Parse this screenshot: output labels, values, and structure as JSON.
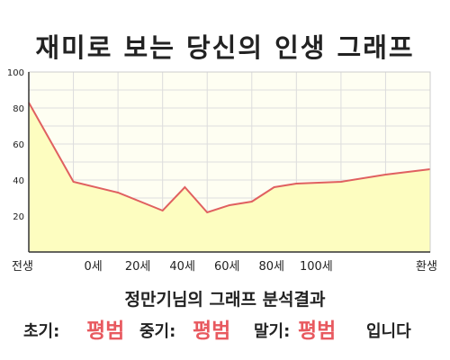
{
  "header": {
    "title": "재미로 보는 당신의 인생 그래프"
  },
  "chart_data": {
    "type": "area",
    "categories": [
      "전생",
      "0세",
      "20세",
      "40세",
      "60세",
      "80세",
      "100세",
      "환생"
    ],
    "x": [
      0,
      1,
      2,
      3,
      3.5,
      4,
      4.5,
      5,
      5.5,
      6,
      7,
      8,
      9
    ],
    "values": [
      83,
      39,
      33,
      23,
      36,
      22,
      26,
      28,
      36,
      38,
      39,
      43,
      46
    ],
    "ylim": [
      0,
      100
    ],
    "yticks": [
      20,
      40,
      60,
      80,
      100
    ],
    "grid": true,
    "colors": {
      "line": "#e06060",
      "fill": "#fdfdc0",
      "background": "#fefef2",
      "grid": "#dddddd"
    }
  },
  "summary": {
    "title": "정만기님의 그래프 분석결과",
    "early_label": "초기:",
    "early_value": "평범",
    "middle_label": "중기:",
    "middle_value": "평범",
    "late_label": "말기:",
    "late_value": "평범",
    "suffix": "입니다"
  },
  "colors": {
    "accent": "#e8595f"
  }
}
